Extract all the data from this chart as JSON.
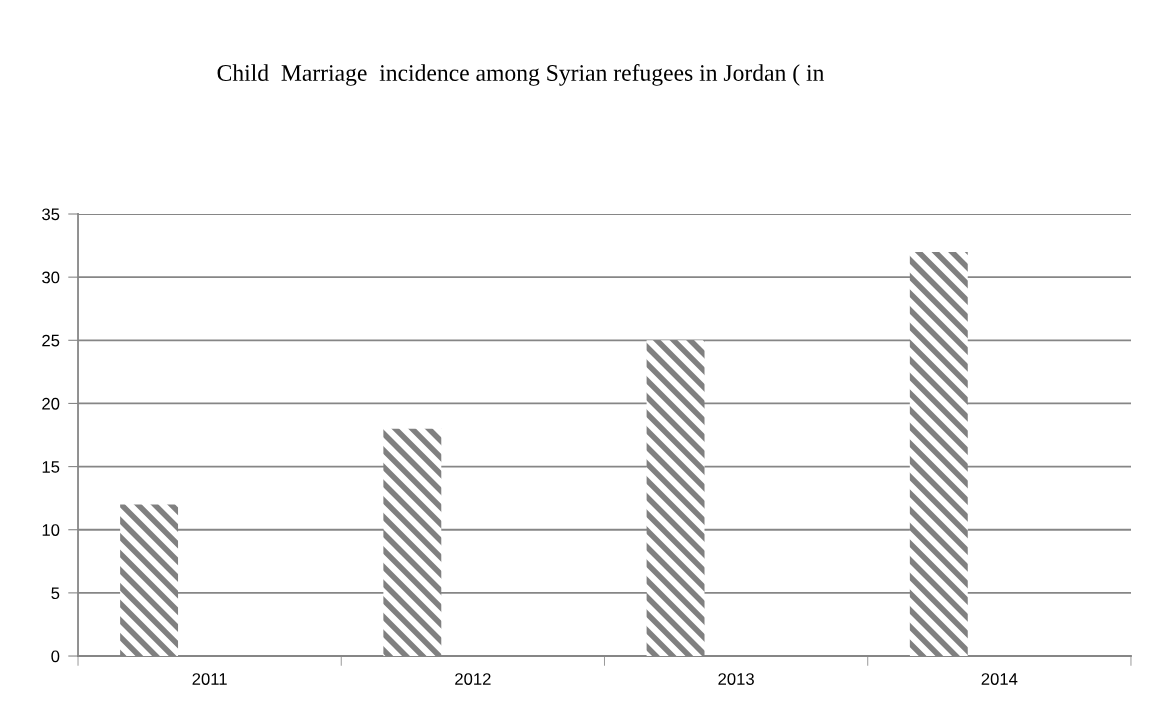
{
  "chart_data": {
    "type": "bar",
    "title": "Child  Marriage  incidence among Syrian refugees in Jordan ( in",
    "categories": [
      "2011",
      "2012",
      "2013",
      "2014"
    ],
    "values": [
      12,
      18,
      25,
      32
    ],
    "color": "#808080",
    "ylim": [
      0,
      35
    ],
    "yticks": [
      0,
      5,
      10,
      15,
      20,
      25,
      30,
      35
    ],
    "grid": "y"
  }
}
